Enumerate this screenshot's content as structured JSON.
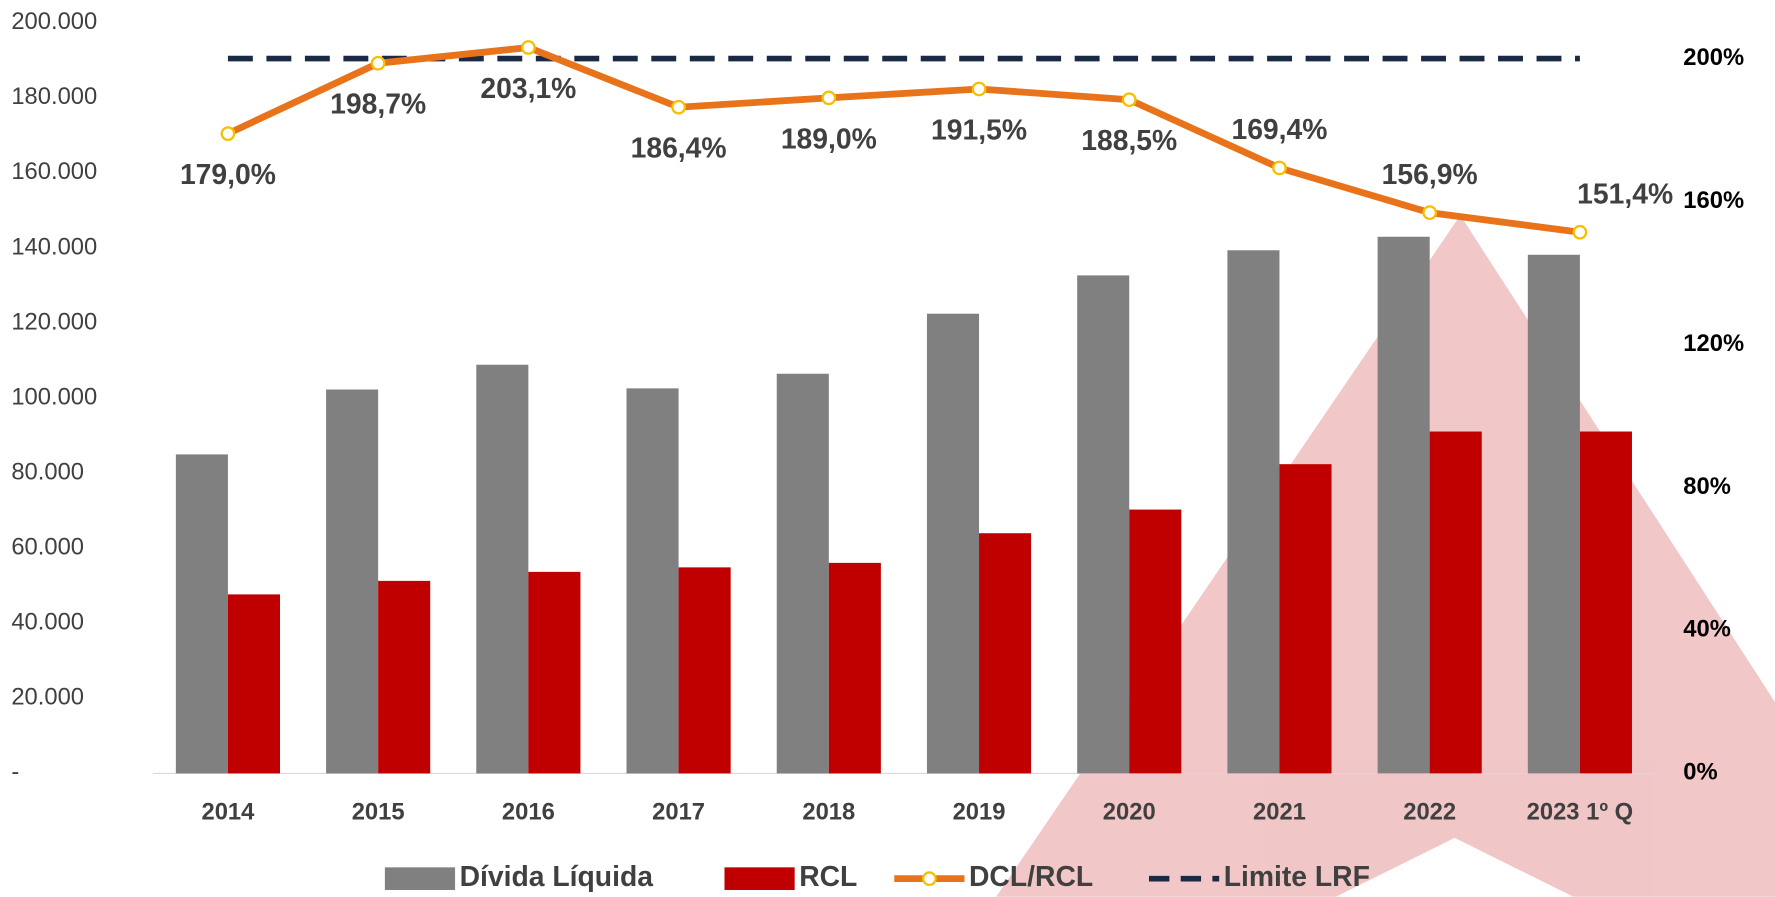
{
  "chart_data": {
    "type": "bar",
    "categories": [
      "2014",
      "2015",
      "2016",
      "2017",
      "2018",
      "2019",
      "2020",
      "2021",
      "2022",
      "2023 1º Q"
    ],
    "series": [
      {
        "name": "Dívida Líquida",
        "type": "bar",
        "color": "#808080",
        "values": [
          85000,
          102300,
          108900,
          102600,
          106500,
          122500,
          132700,
          139400,
          143000,
          138200
        ]
      },
      {
        "name": "RCL",
        "type": "bar",
        "color": "#c00000",
        "values": [
          47700,
          51300,
          53700,
          54900,
          56100,
          64000,
          70300,
          82400,
          91100,
          91100
        ]
      },
      {
        "name": "DCL/RCL",
        "type": "line",
        "axis": "y2",
        "color": "#e8731a",
        "values": [
          179.0,
          198.7,
          203.1,
          186.4,
          189.0,
          191.5,
          188.5,
          169.4,
          156.9,
          151.4
        ],
        "value_labels": [
          "179,0%",
          "198,7%",
          "203,1%",
          "186,4%",
          "189,0%",
          "191,5%",
          "188,5%",
          "169,4%",
          "156,9%",
          "151,4%"
        ]
      },
      {
        "name": "Limite LRF",
        "type": "dashed-line",
        "axis": "y2",
        "color": "#1a2a44",
        "values": [
          200,
          200,
          200,
          200,
          200,
          200,
          200,
          200,
          200,
          200
        ]
      }
    ],
    "ylim": [
      0,
      200000
    ],
    "yticks": [
      {
        "value": 0,
        "label": "-"
      },
      {
        "value": 20000,
        "label": "20.000"
      },
      {
        "value": 40000,
        "label": "40.000"
      },
      {
        "value": 60000,
        "label": "60.000"
      },
      {
        "value": 80000,
        "label": "80.000"
      },
      {
        "value": 100000,
        "label": "100.000"
      },
      {
        "value": 120000,
        "label": "120.000"
      },
      {
        "value": 140000,
        "label": "140.000"
      },
      {
        "value": 160000,
        "label": "160.000"
      },
      {
        "value": 180000,
        "label": "180.000"
      },
      {
        "value": 200000,
        "label": "200.000"
      }
    ],
    "y2lim": [
      0,
      210
    ],
    "y2ticks": [
      {
        "value": 0,
        "label": "0%"
      },
      {
        "value": 40,
        "label": "40%"
      },
      {
        "value": 80,
        "label": "80%"
      },
      {
        "value": 120,
        "label": "120%"
      },
      {
        "value": 160,
        "label": "160%"
      },
      {
        "value": 200,
        "label": "200%"
      }
    ],
    "legend": "bottom"
  }
}
